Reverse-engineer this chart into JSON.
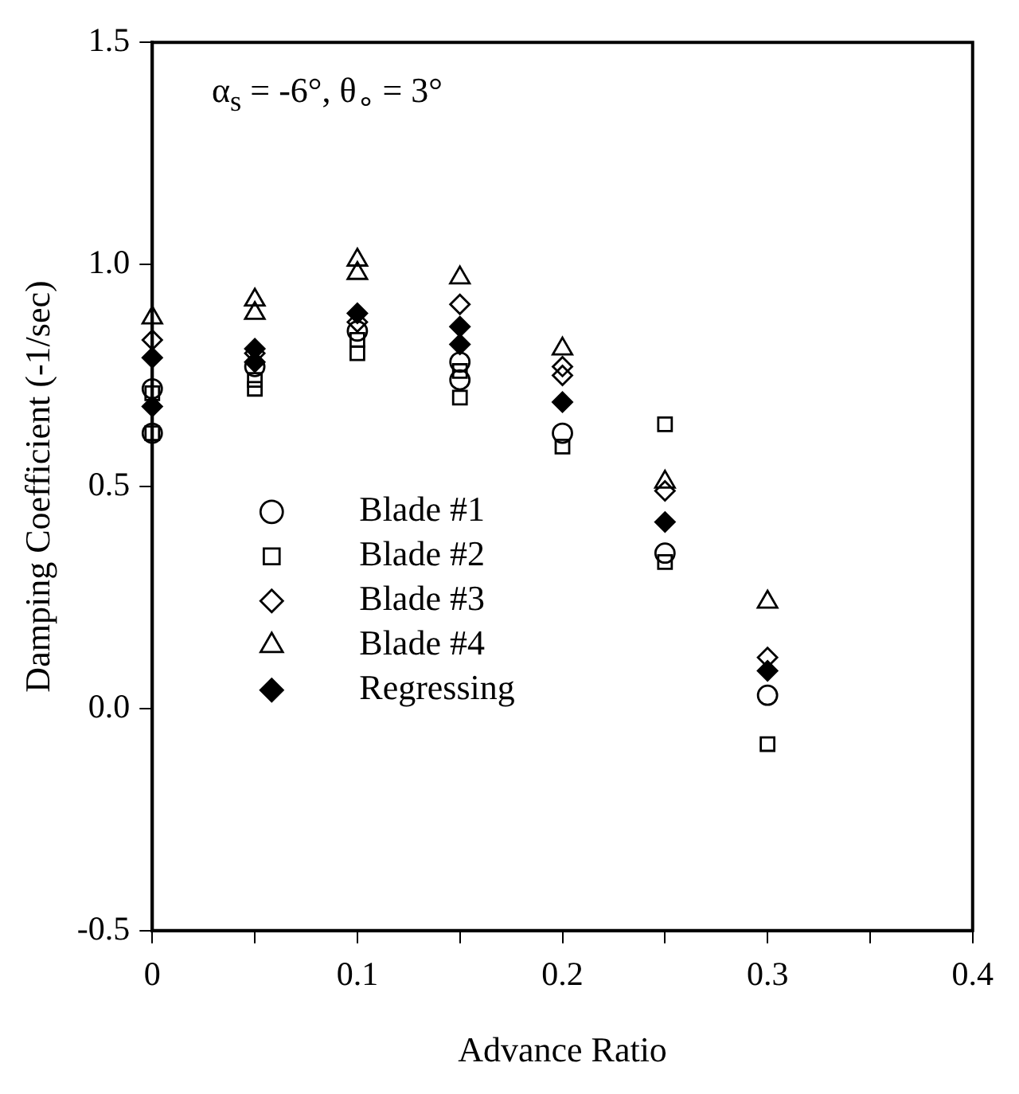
{
  "chart_data": {
    "type": "scatter",
    "xlabel": "Advance Ratio",
    "ylabel": "Damping Coefficient (-1/sec)",
    "annotations": [
      "α$_{s}$ = -6°, θ$_{∘}$ = 3°"
    ],
    "xlim": [
      0,
      0.4
    ],
    "xticks": [
      0,
      {
        "value": 0.05,
        "label": null
      },
      0.1,
      {
        "value": 0.15,
        "label": null
      },
      0.2,
      {
        "value": 0.25,
        "label": null
      },
      0.3,
      {
        "value": 0.35,
        "label": null
      },
      0.4
    ],
    "ylim": [
      -0.5,
      1.5
    ],
    "yticks": [
      {
        "value": -0.5,
        "label": "-0.5"
      },
      {
        "value": 0,
        "label": "0.0"
      },
      {
        "value": 0.5,
        "label": "0.5"
      },
      {
        "value": 1,
        "label": "1.0"
      },
      {
        "value": 1.5,
        "label": "1.5"
      }
    ],
    "grid": false,
    "legend": "bottom left",
    "series": [
      {
        "name": "Blade #1",
        "color": "#000000",
        "marker": "circle",
        "x": [
          0,
          0,
          0.05,
          0.1,
          0.15,
          0.15,
          0.2,
          0.25,
          0.3
        ],
        "values": [
          0.72,
          0.62,
          0.77,
          0.85,
          0.78,
          0.74,
          0.62,
          0.35,
          0.03
        ]
      },
      {
        "name": "Blade #2",
        "color": "#000000",
        "marker": "square",
        "x": [
          0,
          0,
          0.05,
          0.05,
          0.1,
          0.1,
          0.15,
          0.15,
          0.2,
          0.25,
          0.25,
          0.3
        ],
        "values": [
          0.71,
          0.62,
          0.74,
          0.72,
          0.83,
          0.8,
          0.76,
          0.7,
          0.59,
          0.64,
          0.33,
          -0.08
        ]
      },
      {
        "name": "Blade #3",
        "color": "#000000",
        "marker": "diamond",
        "x": [
          0,
          0.05,
          0.1,
          0.15,
          0.2,
          0.2,
          0.25,
          0.3
        ],
        "values": [
          0.83,
          0.8,
          0.87,
          0.91,
          0.77,
          0.75,
          0.49,
          0.115
        ]
      },
      {
        "name": "Blade #4",
        "color": "#000000",
        "marker": "triangle",
        "x": [
          0,
          0.05,
          0.05,
          0.1,
          0.1,
          0.15,
          0.2,
          0.25,
          0.3
        ],
        "values": [
          0.88,
          0.92,
          0.89,
          1.01,
          0.98,
          0.97,
          0.81,
          0.51,
          0.24
        ]
      },
      {
        "name": "Regressing",
        "color": "#000000",
        "marker": "diamond",
        "x": [
          0,
          0,
          0.05,
          0.05,
          0.1,
          0.15,
          0.15,
          0.2,
          0.25,
          0.3
        ],
        "values": [
          0.79,
          0.68,
          0.81,
          0.78,
          0.89,
          0.86,
          0.82,
          0.69,
          0.42,
          0.085
        ]
      }
    ]
  }
}
